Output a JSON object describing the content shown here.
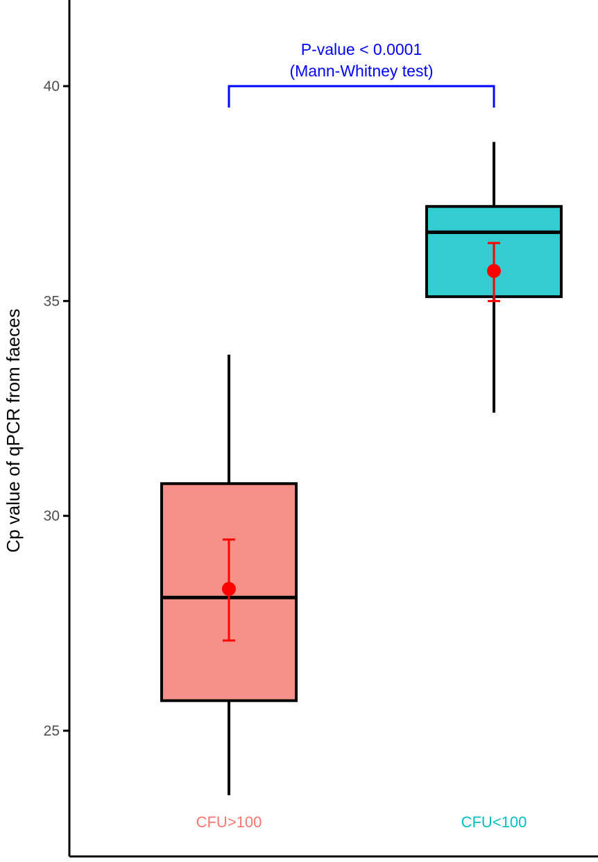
{
  "chart_data": {
    "type": "box",
    "title": "",
    "xlabel": "",
    "ylabel": "Cp value of qPCR from faeces",
    "ylim": [
      22.2,
      42.0
    ],
    "yticks": [
      25,
      30,
      35,
      40
    ],
    "ytick_labels": [
      "25",
      "30",
      "35",
      "40"
    ],
    "grid": false,
    "categories": [
      "CFU>100",
      "CFU<100"
    ],
    "category_colors": [
      "#F8766D",
      "#00BFC4"
    ],
    "box_fill_colors": [
      "#F8908A",
      "#33CCD1"
    ],
    "mean_color": "#FF0000",
    "series": [
      {
        "category": "CFU>100",
        "whisker_low": 23.5,
        "q1": 25.7,
        "median": 28.1,
        "q3": 30.75,
        "whisker_high": 33.75,
        "mean": 28.3,
        "mean_ci_low": 27.1,
        "mean_ci_high": 29.45
      },
      {
        "category": "CFU<100",
        "whisker_low": 32.4,
        "q1": 35.1,
        "median": 36.6,
        "q3": 37.2,
        "whisker_high": 38.7,
        "mean": 35.7,
        "mean_ci_low": 35.0,
        "mean_ci_high": 36.35
      }
    ],
    "annotation": {
      "line1": "P-value < 0.0001",
      "line2": "(Mann-Whitney test)",
      "color": "#0000FF",
      "bracket_y": 40.0,
      "bracket_drop_to": 39.5
    }
  }
}
